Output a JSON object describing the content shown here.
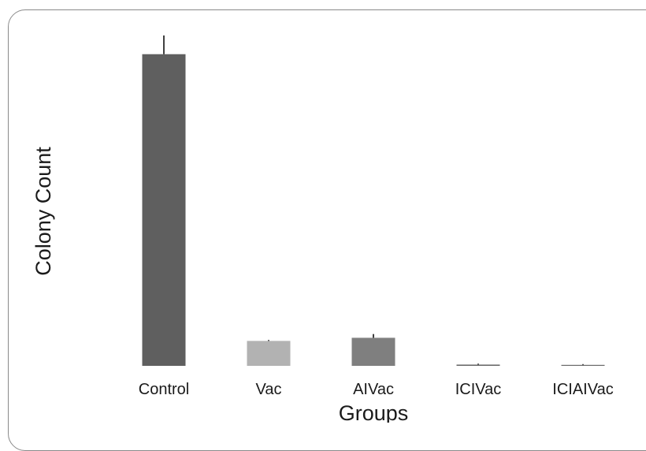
{
  "chart_data": {
    "type": "bar",
    "title": "",
    "xlabel": "Groups",
    "ylabel": "Colony Count",
    "categories": [
      "Control",
      "Vac",
      "AIVac",
      "ICIVac",
      "ICIAIVac"
    ],
    "values": [
      100,
      8,
      9,
      0.4,
      0.2
    ],
    "errors": [
      6,
      0.3,
      1.2,
      0.3,
      0.1
    ],
    "ylim": [
      0,
      106
    ],
    "grid": false,
    "legend": "none",
    "bar_colors": [
      "#5f5f5f",
      "#b2b2b2",
      "#7f7f7f",
      "#6a6a6a",
      "#6a6a6a"
    ],
    "error_bar_color": "#000000",
    "frame_color": "#8a8a8a"
  }
}
